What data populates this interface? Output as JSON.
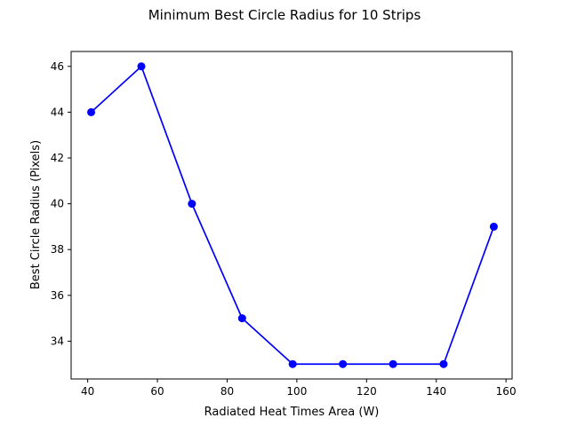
{
  "chart_data": {
    "type": "line",
    "title": "Minimum Best Circle Radius for 10 Strips",
    "xlabel": "Radiated Heat Times Area (W)",
    "ylabel": "Best Circle Radius (Pixels)",
    "xlim": [
      35.25,
      161.75
    ],
    "ylim": [
      32.35,
      46.65
    ],
    "xticks": [
      40,
      60,
      80,
      100,
      120,
      140,
      160
    ],
    "yticks": [
      34,
      36,
      38,
      40,
      42,
      44,
      46
    ],
    "grid": false,
    "series": [
      {
        "color": "#0000ff",
        "marker": "circle",
        "x": [
          41,
          55.4,
          69.9,
          84.3,
          98.8,
          113.2,
          127.6,
          142.1,
          156.5
        ],
        "y": [
          44,
          46,
          40,
          35,
          33,
          33,
          33,
          33,
          39
        ]
      }
    ]
  }
}
